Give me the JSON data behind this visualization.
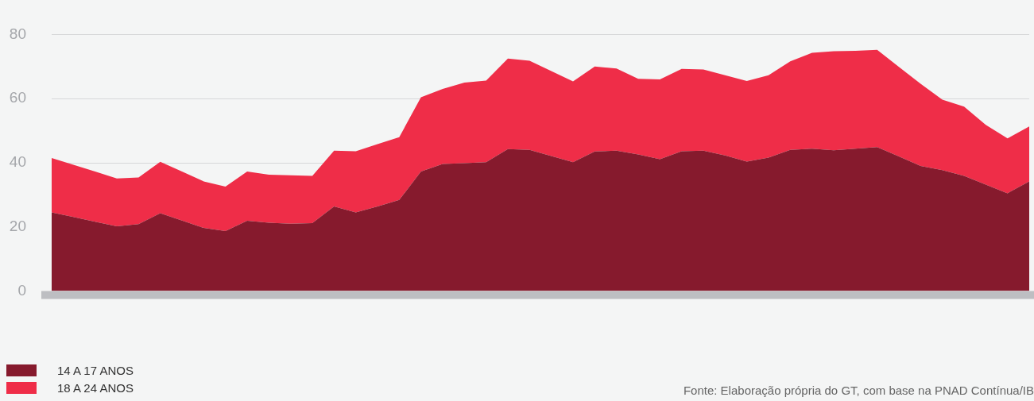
{
  "chart_data": {
    "type": "area",
    "stacked": true,
    "grid": "y",
    "legend": "bottom left",
    "marker": "none",
    "categories": [
      null,
      null,
      null,
      null,
      null,
      null,
      null,
      null,
      null,
      null,
      null,
      null,
      null,
      null,
      null,
      null,
      null,
      null,
      null,
      null,
      null,
      null,
      null,
      null,
      null,
      null,
      null,
      null,
      null,
      null,
      null,
      null,
      null,
      null,
      null,
      null,
      null,
      null,
      null,
      null,
      null,
      null,
      null,
      null,
      null,
      null
    ],
    "series": [
      {
        "name": "14 A 17 ANOS",
        "color": "#861a2d",
        "values": [
          24.5,
          23.1,
          21.6,
          20.2,
          20.9,
          24.3,
          22.0,
          19.7,
          18.7,
          21.9,
          21.3,
          21.0,
          21.2,
          26.4,
          24.5,
          26.4,
          28.4,
          37.3,
          39.6,
          39.9,
          40.2,
          44.3,
          44.0,
          42.1,
          40.2,
          43.5,
          43.8,
          42.6,
          41.1,
          43.6,
          43.8,
          42.3,
          40.4,
          41.6,
          44.0,
          44.4,
          43.9,
          44.4,
          44.9,
          42.0,
          39.0,
          37.7,
          35.9,
          33.2,
          30.5,
          34.2
        ]
      },
      {
        "name": "18 A 24 ANOS",
        "color": "#ef2d48",
        "values": [
          17.0,
          16.3,
          15.7,
          14.9,
          14.5,
          16.0,
          15.3,
          14.5,
          13.9,
          15.4,
          15.0,
          15.1,
          14.7,
          17.4,
          19.1,
          19.4,
          19.6,
          23.1,
          23.4,
          25.1,
          25.4,
          28.2,
          27.8,
          26.5,
          25.2,
          26.5,
          25.6,
          23.6,
          24.9,
          25.7,
          25.3,
          25.0,
          25.1,
          25.7,
          27.6,
          29.9,
          30.9,
          30.5,
          30.3,
          27.9,
          25.6,
          22.0,
          21.6,
          18.6,
          17.1,
          17.1
        ]
      }
    ],
    "ylim": [
      0,
      80
    ],
    "yticks": [
      0,
      20,
      40,
      60,
      80
    ],
    "annotations": [
      "Fonte: Elaboração própria do GT, com base na PNAD Contínua/IB"
    ]
  }
}
